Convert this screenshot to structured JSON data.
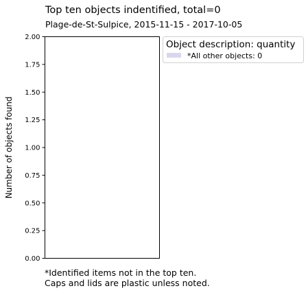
{
  "chart_data": {
    "type": "bar",
    "title": "Top ten objects indentified,  total=0",
    "subtitle": "Plage-de-St-Sulpice, 2015-11-15 - 2017-10-05",
    "xlabel": "",
    "ylabel": "Number of objects found",
    "ylim": [
      0,
      2.0
    ],
    "yticks": [
      "0.00",
      "0.25",
      "0.50",
      "0.75",
      "1.00",
      "1.25",
      "1.50",
      "1.75",
      "2.00"
    ],
    "categories": [
      "*All other objects"
    ],
    "values": [
      0
    ],
    "grid": false,
    "legend": {
      "title": "Object description: quantity",
      "placement": "outside-top-right",
      "entries": [
        {
          "label": "*All other objects: 0",
          "color": "#d9d7ec"
        }
      ]
    },
    "footnote": [
      "*Identified items not in the top ten.",
      "Caps and lids are plastic unless noted."
    ]
  }
}
